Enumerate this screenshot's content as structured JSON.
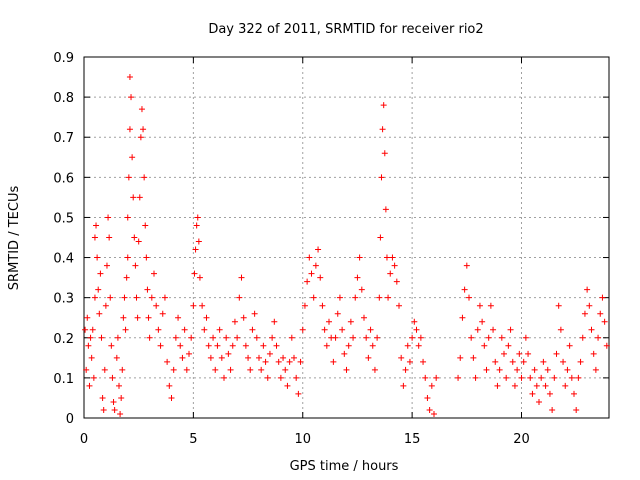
{
  "chart_data": {
    "type": "scatter",
    "title": "Day 322 of 2011, SRMTID for receiver rio2",
    "xlabel": "GPS time / hours",
    "ylabel": "SRMTID / TECUs",
    "xlim": [
      0,
      24
    ],
    "ylim": [
      0,
      0.9
    ],
    "xticks": [
      0,
      5,
      10,
      15,
      20
    ],
    "xtick_labels": [
      "0",
      "5",
      "10",
      "15",
      "20"
    ],
    "yticks": [
      0,
      0.1,
      0.2,
      0.3,
      0.4,
      0.5,
      0.6,
      0.7,
      0.8,
      0.9
    ],
    "ytick_labels": [
      "0",
      "0.1",
      "0.2",
      "0.3",
      "0.4",
      "0.5",
      "0.6",
      "0.7",
      "0.8",
      "0.9"
    ],
    "grid": true,
    "marker": "+",
    "color": "#ff0000",
    "series": [
      {
        "name": "SRMTID",
        "points": [
          [
            0.05,
            0.22
          ],
          [
            0.1,
            0.12
          ],
          [
            0.15,
            0.25
          ],
          [
            0.2,
            0.18
          ],
          [
            0.25,
            0.08
          ],
          [
            0.3,
            0.2
          ],
          [
            0.35,
            0.15
          ],
          [
            0.4,
            0.22
          ],
          [
            0.45,
            0.1
          ],
          [
            0.5,
            0.3
          ],
          [
            0.5,
            0.45
          ],
          [
            0.55,
            0.48
          ],
          [
            0.6,
            0.4
          ],
          [
            0.65,
            0.32
          ],
          [
            0.7,
            0.26
          ],
          [
            0.75,
            0.36
          ],
          [
            0.8,
            0.2
          ],
          [
            0.85,
            0.05
          ],
          [
            0.9,
            0.02
          ],
          [
            0.95,
            0.12
          ],
          [
            1.0,
            0.28
          ],
          [
            1.05,
            0.38
          ],
          [
            1.1,
            0.5
          ],
          [
            1.15,
            0.45
          ],
          [
            1.2,
            0.3
          ],
          [
            1.25,
            0.18
          ],
          [
            1.3,
            0.1
          ],
          [
            1.35,
            0.04
          ],
          [
            1.4,
            0.02
          ],
          [
            1.5,
            0.15
          ],
          [
            1.55,
            0.2
          ],
          [
            1.6,
            0.08
          ],
          [
            1.65,
            0.01
          ],
          [
            1.7,
            0.05
          ],
          [
            1.75,
            0.12
          ],
          [
            1.8,
            0.25
          ],
          [
            1.85,
            0.3
          ],
          [
            1.9,
            0.22
          ],
          [
            1.95,
            0.35
          ],
          [
            2.0,
            0.4
          ],
          [
            2.0,
            0.5
          ],
          [
            2.05,
            0.6
          ],
          [
            2.1,
            0.72
          ],
          [
            2.1,
            0.85
          ],
          [
            2.15,
            0.8
          ],
          [
            2.2,
            0.65
          ],
          [
            2.25,
            0.55
          ],
          [
            2.3,
            0.45
          ],
          [
            2.35,
            0.38
          ],
          [
            2.4,
            0.3
          ],
          [
            2.45,
            0.25
          ],
          [
            2.5,
            0.44
          ],
          [
            2.55,
            0.55
          ],
          [
            2.6,
            0.7
          ],
          [
            2.65,
            0.77
          ],
          [
            2.7,
            0.72
          ],
          [
            2.75,
            0.6
          ],
          [
            2.8,
            0.48
          ],
          [
            2.85,
            0.4
          ],
          [
            2.9,
            0.32
          ],
          [
            2.95,
            0.25
          ],
          [
            3.0,
            0.2
          ],
          [
            3.1,
            0.3
          ],
          [
            3.2,
            0.36
          ],
          [
            3.3,
            0.28
          ],
          [
            3.4,
            0.22
          ],
          [
            3.5,
            0.18
          ],
          [
            3.6,
            0.26
          ],
          [
            3.7,
            0.3
          ],
          [
            3.8,
            0.14
          ],
          [
            3.9,
            0.08
          ],
          [
            4.0,
            0.05
          ],
          [
            4.1,
            0.12
          ],
          [
            4.2,
            0.2
          ],
          [
            4.3,
            0.25
          ],
          [
            4.4,
            0.18
          ],
          [
            4.5,
            0.15
          ],
          [
            4.6,
            0.22
          ],
          [
            4.7,
            0.12
          ],
          [
            4.8,
            0.16
          ],
          [
            4.9,
            0.2
          ],
          [
            5.0,
            0.28
          ],
          [
            5.05,
            0.36
          ],
          [
            5.1,
            0.42
          ],
          [
            5.15,
            0.48
          ],
          [
            5.2,
            0.5
          ],
          [
            5.25,
            0.44
          ],
          [
            5.3,
            0.35
          ],
          [
            5.4,
            0.28
          ],
          [
            5.5,
            0.22
          ],
          [
            5.6,
            0.25
          ],
          [
            5.7,
            0.18
          ],
          [
            5.8,
            0.15
          ],
          [
            5.9,
            0.2
          ],
          [
            6.0,
            0.12
          ],
          [
            6.1,
            0.18
          ],
          [
            6.2,
            0.22
          ],
          [
            6.3,
            0.15
          ],
          [
            6.4,
            0.1
          ],
          [
            6.5,
            0.2
          ],
          [
            6.6,
            0.16
          ],
          [
            6.7,
            0.12
          ],
          [
            6.8,
            0.18
          ],
          [
            6.9,
            0.24
          ],
          [
            7.0,
            0.2
          ],
          [
            7.1,
            0.3
          ],
          [
            7.2,
            0.35
          ],
          [
            7.3,
            0.25
          ],
          [
            7.4,
            0.18
          ],
          [
            7.5,
            0.15
          ],
          [
            7.6,
            0.12
          ],
          [
            7.7,
            0.22
          ],
          [
            7.8,
            0.26
          ],
          [
            7.9,
            0.2
          ],
          [
            8.0,
            0.15
          ],
          [
            8.1,
            0.12
          ],
          [
            8.2,
            0.18
          ],
          [
            8.3,
            0.14
          ],
          [
            8.4,
            0.1
          ],
          [
            8.5,
            0.16
          ],
          [
            8.6,
            0.2
          ],
          [
            8.7,
            0.24
          ],
          [
            8.8,
            0.18
          ],
          [
            8.9,
            0.14
          ],
          [
            9.0,
            0.1
          ],
          [
            9.1,
            0.15
          ],
          [
            9.2,
            0.12
          ],
          [
            9.3,
            0.08
          ],
          [
            9.4,
            0.14
          ],
          [
            9.5,
            0.2
          ],
          [
            9.6,
            0.15
          ],
          [
            9.7,
            0.1
          ],
          [
            9.8,
            0.06
          ],
          [
            9.9,
            0.14
          ],
          [
            10.0,
            0.22
          ],
          [
            10.1,
            0.28
          ],
          [
            10.2,
            0.34
          ],
          [
            10.3,
            0.4
          ],
          [
            10.4,
            0.36
          ],
          [
            10.5,
            0.3
          ],
          [
            10.6,
            0.38
          ],
          [
            10.7,
            0.42
          ],
          [
            10.8,
            0.35
          ],
          [
            10.9,
            0.28
          ],
          [
            11.0,
            0.22
          ],
          [
            11.1,
            0.18
          ],
          [
            11.2,
            0.24
          ],
          [
            11.3,
            0.2
          ],
          [
            11.4,
            0.14
          ],
          [
            11.5,
            0.2
          ],
          [
            11.6,
            0.26
          ],
          [
            11.7,
            0.3
          ],
          [
            11.8,
            0.22
          ],
          [
            11.9,
            0.16
          ],
          [
            12.0,
            0.12
          ],
          [
            12.1,
            0.18
          ],
          [
            12.2,
            0.24
          ],
          [
            12.3,
            0.2
          ],
          [
            12.4,
            0.3
          ],
          [
            12.5,
            0.35
          ],
          [
            12.6,
            0.4
          ],
          [
            12.7,
            0.32
          ],
          [
            12.8,
            0.25
          ],
          [
            12.9,
            0.2
          ],
          [
            13.0,
            0.15
          ],
          [
            13.1,
            0.22
          ],
          [
            13.2,
            0.18
          ],
          [
            13.3,
            0.12
          ],
          [
            13.4,
            0.2
          ],
          [
            13.5,
            0.3
          ],
          [
            13.55,
            0.45
          ],
          [
            13.6,
            0.6
          ],
          [
            13.65,
            0.72
          ],
          [
            13.7,
            0.78
          ],
          [
            13.75,
            0.66
          ],
          [
            13.8,
            0.52
          ],
          [
            13.85,
            0.4
          ],
          [
            13.9,
            0.3
          ],
          [
            14.0,
            0.36
          ],
          [
            14.1,
            0.4
          ],
          [
            14.2,
            0.38
          ],
          [
            14.3,
            0.34
          ],
          [
            14.4,
            0.28
          ],
          [
            14.5,
            0.15
          ],
          [
            14.6,
            0.08
          ],
          [
            14.7,
            0.12
          ],
          [
            14.8,
            0.18
          ],
          [
            14.9,
            0.14
          ],
          [
            15.0,
            0.2
          ],
          [
            15.1,
            0.24
          ],
          [
            15.2,
            0.22
          ],
          [
            15.3,
            0.18
          ],
          [
            15.4,
            0.2
          ],
          [
            15.5,
            0.14
          ],
          [
            15.6,
            0.1
          ],
          [
            15.7,
            0.05
          ],
          [
            15.8,
            0.02
          ],
          [
            15.9,
            0.08
          ],
          [
            16.0,
            0.01
          ],
          [
            16.1,
            0.1
          ],
          [
            17.1,
            0.1
          ],
          [
            17.2,
            0.15
          ],
          [
            17.3,
            0.25
          ],
          [
            17.4,
            0.32
          ],
          [
            17.5,
            0.38
          ],
          [
            17.6,
            0.3
          ],
          [
            17.7,
            0.2
          ],
          [
            17.8,
            0.15
          ],
          [
            17.9,
            0.1
          ],
          [
            18.0,
            0.22
          ],
          [
            18.1,
            0.28
          ],
          [
            18.2,
            0.24
          ],
          [
            18.3,
            0.18
          ],
          [
            18.4,
            0.12
          ],
          [
            18.5,
            0.2
          ],
          [
            18.6,
            0.28
          ],
          [
            18.7,
            0.22
          ],
          [
            18.8,
            0.14
          ],
          [
            18.9,
            0.08
          ],
          [
            19.0,
            0.12
          ],
          [
            19.1,
            0.2
          ],
          [
            19.2,
            0.16
          ],
          [
            19.3,
            0.1
          ],
          [
            19.4,
            0.18
          ],
          [
            19.5,
            0.22
          ],
          [
            19.6,
            0.14
          ],
          [
            19.7,
            0.08
          ],
          [
            19.8,
            0.12
          ],
          [
            19.9,
            0.16
          ],
          [
            20.0,
            0.1
          ],
          [
            20.1,
            0.14
          ],
          [
            20.2,
            0.2
          ],
          [
            20.3,
            0.16
          ],
          [
            20.4,
            0.1
          ],
          [
            20.5,
            0.06
          ],
          [
            20.6,
            0.12
          ],
          [
            20.7,
            0.08
          ],
          [
            20.8,
            0.04
          ],
          [
            20.9,
            0.1
          ],
          [
            21.0,
            0.14
          ],
          [
            21.1,
            0.08
          ],
          [
            21.2,
            0.12
          ],
          [
            21.3,
            0.06
          ],
          [
            21.4,
            0.02
          ],
          [
            21.5,
            0.1
          ],
          [
            21.6,
            0.16
          ],
          [
            21.7,
            0.28
          ],
          [
            21.8,
            0.22
          ],
          [
            21.9,
            0.14
          ],
          [
            22.0,
            0.08
          ],
          [
            22.1,
            0.12
          ],
          [
            22.2,
            0.18
          ],
          [
            22.3,
            0.1
          ],
          [
            22.4,
            0.06
          ],
          [
            22.5,
            0.02
          ],
          [
            22.6,
            0.1
          ],
          [
            22.7,
            0.14
          ],
          [
            22.8,
            0.2
          ],
          [
            22.9,
            0.26
          ],
          [
            23.0,
            0.32
          ],
          [
            23.1,
            0.28
          ],
          [
            23.2,
            0.22
          ],
          [
            23.3,
            0.16
          ],
          [
            23.4,
            0.12
          ],
          [
            23.5,
            0.2
          ],
          [
            23.6,
            0.26
          ],
          [
            23.7,
            0.3
          ],
          [
            23.8,
            0.24
          ],
          [
            23.9,
            0.18
          ]
        ]
      }
    ]
  }
}
